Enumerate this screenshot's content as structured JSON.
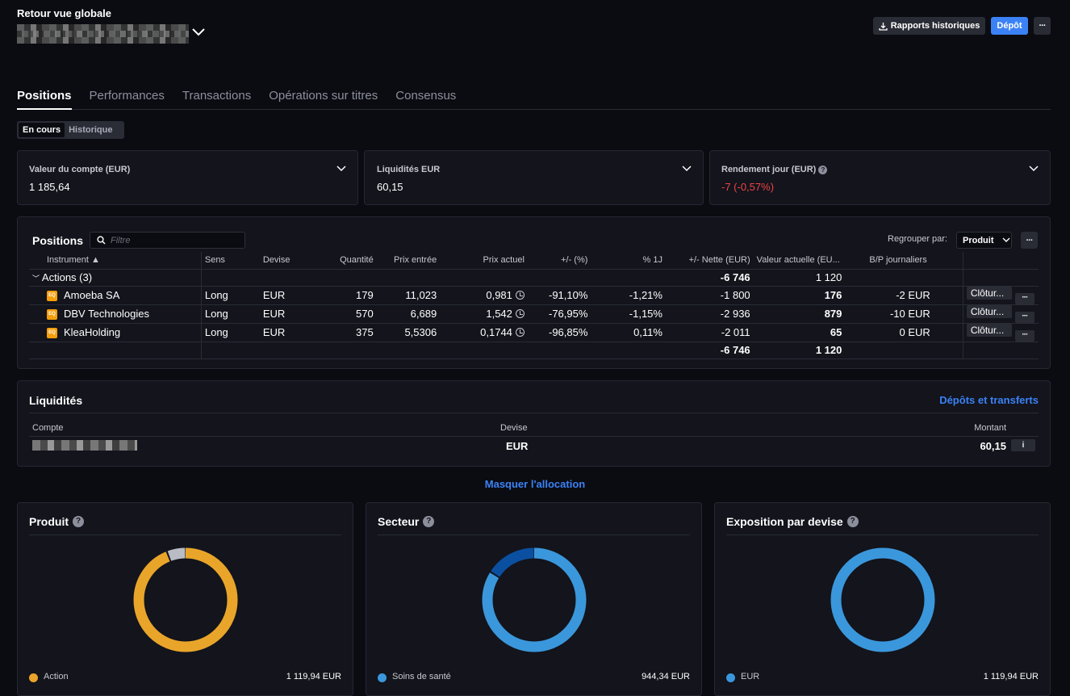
{
  "header": {
    "back_label": "Retour vue globale",
    "reports_label": "Rapports historiques",
    "deposit_label": "Dépôt",
    "more_label": "···"
  },
  "tabs": [
    {
      "label": "Positions",
      "active": true
    },
    {
      "label": "Performances",
      "active": false
    },
    {
      "label": "Transactions",
      "active": false
    },
    {
      "label": "Opérations sur titres",
      "active": false
    },
    {
      "label": "Consensus",
      "active": false
    }
  ],
  "segment": {
    "current": "En cours",
    "history": "Historique"
  },
  "kpis": [
    {
      "label": "Valeur du compte (EUR)",
      "value": "1 185,64"
    },
    {
      "label": "Liquidités EUR",
      "value": "60,15"
    },
    {
      "label": "Rendement jour (EUR)",
      "value": "-7 (-0,57%)"
    }
  ],
  "positions": {
    "title": "Positions",
    "filter_placeholder": "Filtre",
    "group_by_label": "Regrouper par:",
    "group_by_value": "Produit",
    "more_label": "···",
    "columns": [
      "Instrument",
      "Sens",
      "Devise",
      "Quantité",
      "Prix entrée",
      "Prix actuel",
      "+/- (%)",
      "% 1J",
      "+/- Nette (EUR)",
      "Valeur actuelle (EU...",
      "B/P journaliers"
    ],
    "group": {
      "label": "Actions (3)",
      "net": "-6 746",
      "value": "1 120"
    },
    "badge": "EQ",
    "close_label": "Clôtur...",
    "row_more": "···",
    "rows": [
      {
        "instrument": "Amoeba SA",
        "side": "Long",
        "currency": "EUR",
        "qty": "179",
        "entry": "11,023",
        "current": "0,981",
        "pct": "-91,10%",
        "day": "-1,21%",
        "net": "-1 800",
        "value": "176",
        "daily_pl": "-2 EUR"
      },
      {
        "instrument": "DBV Technologies",
        "side": "Long",
        "currency": "EUR",
        "qty": "570",
        "entry": "6,689",
        "current": "1,542",
        "pct": "-76,95%",
        "day": "-1,15%",
        "net": "-2 936",
        "value": "879",
        "daily_pl": "-10 EUR"
      },
      {
        "instrument": "KleaHolding",
        "side": "Long",
        "currency": "EUR",
        "qty": "375",
        "entry": "5,5306",
        "current": "0,1744",
        "pct": "-96,85%",
        "day": "0,11%",
        "net": "-2 011",
        "value": "65",
        "daily_pl": "0 EUR"
      }
    ],
    "totals": {
      "net": "-6 746",
      "value": "1 120"
    }
  },
  "liquidity": {
    "title": "Liquidités",
    "link": "Dépôts et transferts",
    "col_account": "Compte",
    "col_currency": "Devise",
    "col_amount": "Montant",
    "currency": "EUR",
    "amount": "60,15",
    "info": "i"
  },
  "allocation": {
    "toggle_label": "Masquer l'allocation",
    "cards": [
      {
        "title": "Produit",
        "legend": "Action",
        "value": "1 119,94 EUR",
        "color": "#e9a52a",
        "share": 0.94,
        "rest_color": "#b9bcc4"
      },
      {
        "title": "Secteur",
        "legend": "Soins de santé",
        "value": "944,34 EUR",
        "color": "#3b97db",
        "share": 0.84,
        "rest_color": "#0b4fa0"
      },
      {
        "title": "Exposition par devise",
        "legend": "EUR",
        "value": "1 119,94 EUR",
        "color": "#3b97db",
        "share": 1.0,
        "rest_color": "#3b97db"
      }
    ]
  }
}
